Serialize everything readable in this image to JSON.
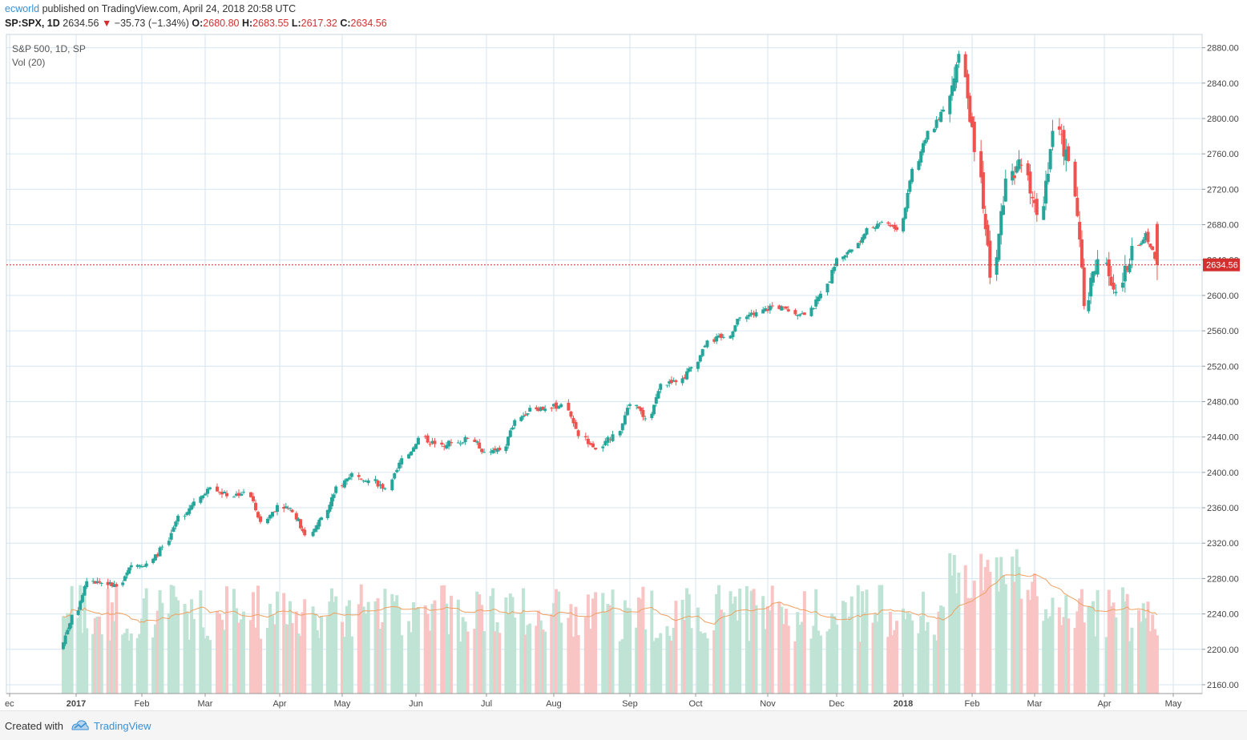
{
  "header": {
    "author": "ecworld",
    "published_text": "published on TradingView.com, April 24, 2018 20:58 UTC",
    "symbol": "SP:SPX, 1D",
    "last": "2634.56",
    "down_arrow": "▼",
    "change": "−35.73 (−1.34%)",
    "open_label": "O:",
    "open": "2680.80",
    "high_label": "H:",
    "high": "2683.55",
    "low_label": "L:",
    "low": "2617.32",
    "close_label": "C:",
    "close": "2634.56"
  },
  "legend": {
    "title": "S&P 500, 1D, SP",
    "indicator": "Vol (20)"
  },
  "footer": {
    "created_with": "Created with",
    "brand": "TradingView"
  },
  "colors": {
    "up": "#26a69a",
    "down": "#ef5350",
    "grid": "#d6e6f2",
    "axis_text": "#444444",
    "ma": "#f0a060",
    "price_line": "#d32f2f"
  },
  "chart_data": {
    "type": "candlestick",
    "title": "S&P 500, 1D, SP",
    "y_axis": {
      "ticks": [
        2160,
        2200,
        2240,
        2280,
        2320,
        2360,
        2400,
        2440,
        2480,
        2520,
        2560,
        2600,
        2640,
        2680,
        2720,
        2760,
        2800,
        2840,
        2880
      ],
      "min": 2150,
      "max": 2895,
      "position": "right"
    },
    "x_axis": {
      "labels": [
        "ec",
        "2017",
        "Feb",
        "Mar",
        "Apr",
        "May",
        "Jun",
        "Jul",
        "Aug",
        "Sep",
        "Oct",
        "Nov",
        "Dec",
        "2018",
        "Feb",
        "Mar",
        "Apr",
        "May"
      ]
    },
    "last_price": 2634.56,
    "grid": true,
    "weekly_close_approx": [
      [
        "2016-12-30",
        2239
      ],
      [
        "2017-01-06",
        2277
      ],
      [
        "2017-01-13",
        2275
      ],
      [
        "2017-01-20",
        2271
      ],
      [
        "2017-01-27",
        2295
      ],
      [
        "2017-02-03",
        2297
      ],
      [
        "2017-02-10",
        2316
      ],
      [
        "2017-02-17",
        2351
      ],
      [
        "2017-02-24",
        2367
      ],
      [
        "2017-03-03",
        2383
      ],
      [
        "2017-03-10",
        2373
      ],
      [
        "2017-03-17",
        2378
      ],
      [
        "2017-03-24",
        2344
      ],
      [
        "2017-03-31",
        2363
      ],
      [
        "2017-04-07",
        2355
      ],
      [
        "2017-04-13",
        2329
      ],
      [
        "2017-04-21",
        2349
      ],
      [
        "2017-04-28",
        2384
      ],
      [
        "2017-05-05",
        2399
      ],
      [
        "2017-05-12",
        2391
      ],
      [
        "2017-05-19",
        2382
      ],
      [
        "2017-05-26",
        2416
      ],
      [
        "2017-06-02",
        2439
      ],
      [
        "2017-06-09",
        2432
      ],
      [
        "2017-06-16",
        2433
      ],
      [
        "2017-06-23",
        2438
      ],
      [
        "2017-06-30",
        2423
      ],
      [
        "2017-07-07",
        2425
      ],
      [
        "2017-07-14",
        2459
      ],
      [
        "2017-07-21",
        2473
      ],
      [
        "2017-07-28",
        2472
      ],
      [
        "2017-08-04",
        2477
      ],
      [
        "2017-08-11",
        2441
      ],
      [
        "2017-08-18",
        2426
      ],
      [
        "2017-08-25",
        2443
      ],
      [
        "2017-09-01",
        2477
      ],
      [
        "2017-09-08",
        2461
      ],
      [
        "2017-09-15",
        2500
      ],
      [
        "2017-09-22",
        2502
      ],
      [
        "2017-09-29",
        2519
      ],
      [
        "2017-10-06",
        2549
      ],
      [
        "2017-10-13",
        2553
      ],
      [
        "2017-10-20",
        2575
      ],
      [
        "2017-10-27",
        2581
      ],
      [
        "2017-11-03",
        2588
      ],
      [
        "2017-11-10",
        2582
      ],
      [
        "2017-11-17",
        2578
      ],
      [
        "2017-11-24",
        2602
      ],
      [
        "2017-12-01",
        2642
      ],
      [
        "2017-12-08",
        2652
      ],
      [
        "2017-12-15",
        2676
      ],
      [
        "2017-12-22",
        2683
      ],
      [
        "2017-12-29",
        2674
      ],
      [
        "2018-01-05",
        2743
      ],
      [
        "2018-01-12",
        2786
      ],
      [
        "2018-01-19",
        2810
      ],
      [
        "2018-01-26",
        2873
      ],
      [
        "2018-02-02",
        2762
      ],
      [
        "2018-02-09",
        2620
      ],
      [
        "2018-02-16",
        2732
      ],
      [
        "2018-02-23",
        2747
      ],
      [
        "2018-03-02",
        2691
      ],
      [
        "2018-03-09",
        2786
      ],
      [
        "2018-03-16",
        2752
      ],
      [
        "2018-03-23",
        2588
      ],
      [
        "2018-03-29",
        2641
      ],
      [
        "2018-04-06",
        2604
      ],
      [
        "2018-04-13",
        2656
      ],
      [
        "2018-04-20",
        2670
      ],
      [
        "2018-04-24",
        2634.56
      ]
    ]
  }
}
